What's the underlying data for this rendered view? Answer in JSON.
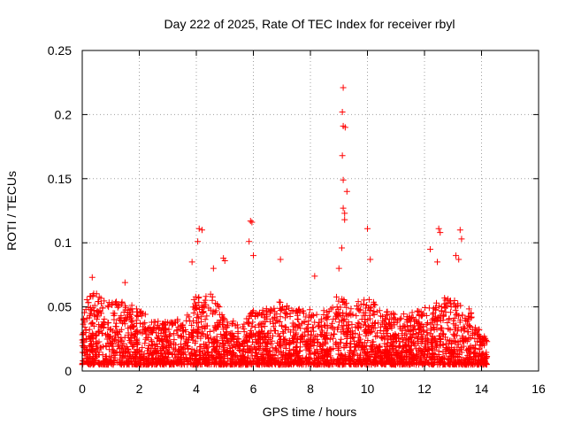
{
  "chart_data": {
    "type": "scatter",
    "title": "Day 222 of 2025, Rate Of TEC Index for receiver rbyl",
    "xlabel": "GPS time / hours",
    "ylabel": "ROTI / TECUs",
    "xlim": [
      0,
      16
    ],
    "ylim": [
      0,
      0.25
    ],
    "x_ticks": [
      0,
      2,
      4,
      6,
      8,
      10,
      12,
      14,
      16
    ],
    "y_ticks": [
      0,
      0.05,
      0.1,
      0.15,
      0.2,
      0.25
    ],
    "x_tick_labels": [
      "0",
      "2",
      "4",
      "6",
      "8",
      "10",
      "12",
      "14",
      "16"
    ],
    "y_tick_labels": [
      "0",
      "0.05",
      "0.1",
      "0.15",
      "0.2",
      "0.25"
    ],
    "grid": true,
    "marker": "+",
    "series_color": "#ff0000",
    "series": [
      {
        "name": "ROTI",
        "notable_points": [
          {
            "x": 9.15,
            "y": 0.221
          },
          {
            "x": 9.12,
            "y": 0.202
          },
          {
            "x": 9.15,
            "y": 0.191
          },
          {
            "x": 9.22,
            "y": 0.19
          },
          {
            "x": 9.12,
            "y": 0.168
          },
          {
            "x": 9.15,
            "y": 0.149
          },
          {
            "x": 9.28,
            "y": 0.14
          },
          {
            "x": 9.15,
            "y": 0.127
          },
          {
            "x": 9.2,
            "y": 0.123
          },
          {
            "x": 9.2,
            "y": 0.118
          },
          {
            "x": 10.0,
            "y": 0.111
          },
          {
            "x": 4.1,
            "y": 0.111
          },
          {
            "x": 4.2,
            "y": 0.11
          },
          {
            "x": 5.9,
            "y": 0.117
          },
          {
            "x": 5.95,
            "y": 0.116
          },
          {
            "x": 12.5,
            "y": 0.111
          },
          {
            "x": 12.55,
            "y": 0.108
          },
          {
            "x": 13.25,
            "y": 0.11
          },
          {
            "x": 13.3,
            "y": 0.103
          },
          {
            "x": 4.05,
            "y": 0.101
          },
          {
            "x": 5.85,
            "y": 0.101
          },
          {
            "x": 9.1,
            "y": 0.096
          },
          {
            "x": 13.1,
            "y": 0.09
          },
          {
            "x": 6.0,
            "y": 0.09
          },
          {
            "x": 4.95,
            "y": 0.088
          },
          {
            "x": 5.0,
            "y": 0.086
          },
          {
            "x": 6.95,
            "y": 0.087
          },
          {
            "x": 10.1,
            "y": 0.087
          },
          {
            "x": 12.2,
            "y": 0.095
          },
          {
            "x": 3.85,
            "y": 0.085
          },
          {
            "x": 12.45,
            "y": 0.085
          },
          {
            "x": 13.2,
            "y": 0.087
          },
          {
            "x": 4.6,
            "y": 0.08
          },
          {
            "x": 9.0,
            "y": 0.08
          },
          {
            "x": 8.15,
            "y": 0.074
          },
          {
            "x": 0.35,
            "y": 0.073
          },
          {
            "x": 1.5,
            "y": 0.069
          }
        ],
        "dense_envelope": [
          {
            "x": 0.0,
            "y": 0.04
          },
          {
            "x": 0.2,
            "y": 0.06
          },
          {
            "x": 0.5,
            "y": 0.062
          },
          {
            "x": 1.0,
            "y": 0.055
          },
          {
            "x": 1.5,
            "y": 0.055
          },
          {
            "x": 2.0,
            "y": 0.048
          },
          {
            "x": 2.5,
            "y": 0.04
          },
          {
            "x": 3.0,
            "y": 0.038
          },
          {
            "x": 3.5,
            "y": 0.042
          },
          {
            "x": 4.0,
            "y": 0.06
          },
          {
            "x": 4.5,
            "y": 0.06
          },
          {
            "x": 5.0,
            "y": 0.045
          },
          {
            "x": 5.5,
            "y": 0.035
          },
          {
            "x": 6.0,
            "y": 0.048
          },
          {
            "x": 6.5,
            "y": 0.05
          },
          {
            "x": 7.0,
            "y": 0.055
          },
          {
            "x": 7.5,
            "y": 0.048
          },
          {
            "x": 8.0,
            "y": 0.05
          },
          {
            "x": 8.5,
            "y": 0.048
          },
          {
            "x": 9.0,
            "y": 0.06
          },
          {
            "x": 9.5,
            "y": 0.052
          },
          {
            "x": 10.0,
            "y": 0.058
          },
          {
            "x": 10.5,
            "y": 0.048
          },
          {
            "x": 11.0,
            "y": 0.045
          },
          {
            "x": 11.5,
            "y": 0.045
          },
          {
            "x": 12.0,
            "y": 0.05
          },
          {
            "x": 12.5,
            "y": 0.058
          },
          {
            "x": 13.0,
            "y": 0.056
          },
          {
            "x": 13.5,
            "y": 0.052
          },
          {
            "x": 14.0,
            "y": 0.03
          },
          {
            "x": 14.2,
            "y": 0.025
          }
        ],
        "dense_floor": 0.005,
        "x_range": [
          0.0,
          14.2
        ]
      }
    ]
  }
}
